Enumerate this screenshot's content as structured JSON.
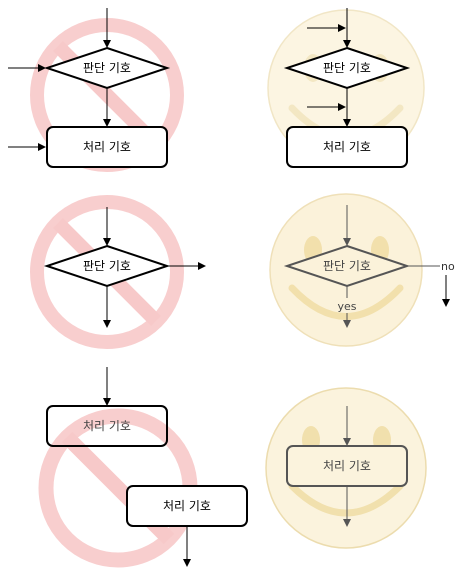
{
  "labels": {
    "decision": "판단 기호",
    "process": "처리 기호",
    "yes": "yes",
    "no": "no"
  },
  "colors": {
    "forbidden": "#f2a7a7",
    "forbidden_fill": "#fdeeee",
    "smiley_fill": "#fbf3dd",
    "smiley_stroke": "#ecdcae",
    "smiley_feature": "#f1e0ad",
    "line": "#000000"
  },
  "icons": {
    "wrong": "prohibited-sign-icon",
    "right": "smiley-face-icon"
  }
}
